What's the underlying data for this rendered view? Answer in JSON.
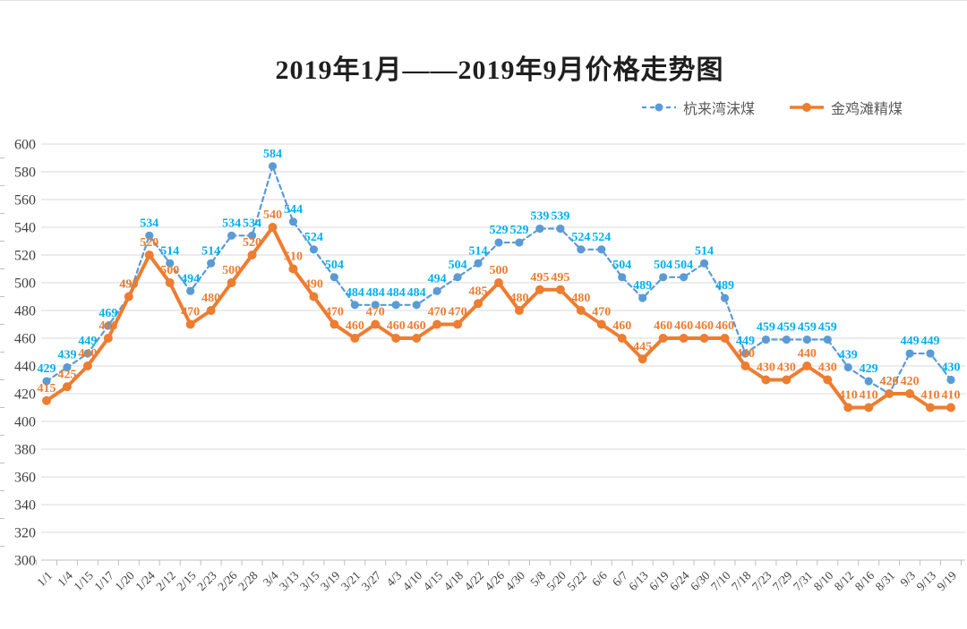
{
  "chart_data": {
    "type": "line",
    "title": "2019年1月——2019年9月价格走势图",
    "categories": [
      "1/1",
      "1/4",
      "1/15",
      "1/17",
      "1/20",
      "1/24",
      "2/12",
      "2/15",
      "2/23",
      "2/26",
      "2/28",
      "3/4",
      "3/13",
      "3/15",
      "3/19",
      "3/21",
      "3/27",
      "4/3",
      "4/10",
      "4/15",
      "4/18",
      "4/22",
      "4/26",
      "4/30",
      "5/8",
      "5/20",
      "5/22",
      "6/6",
      "6/7",
      "6/13",
      "6/19",
      "6/24",
      "6/30",
      "7/10",
      "7/18",
      "7/23",
      "7/29",
      "7/31",
      "8/10",
      "8/12",
      "8/16",
      "8/31",
      "9/3",
      "9/13",
      "9/19"
    ],
    "series": [
      {
        "name": "杭来湾沫煤",
        "color": "#5B9BD5",
        "label_color": "#00B0F0",
        "dash": true,
        "values": [
          429,
          439,
          449,
          469,
          490,
          534,
          514,
          494,
          514,
          534,
          534,
          584,
          544,
          524,
          504,
          484,
          484,
          484,
          484,
          494,
          504,
          514,
          529,
          529,
          539,
          539,
          524,
          524,
          504,
          489,
          504,
          504,
          514,
          489,
          449,
          459,
          459,
          459,
          459,
          439,
          429,
          420,
          449,
          449,
          430
        ]
      },
      {
        "name": "金鸡滩精煤",
        "color": "#ED7D31",
        "label_color": "#ED7D31",
        "dash": false,
        "values": [
          415,
          425,
          440,
          460,
          490,
          520,
          500,
          470,
          480,
          500,
          520,
          540,
          510,
          490,
          470,
          460,
          470,
          460,
          460,
          470,
          470,
          485,
          500,
          480,
          495,
          495,
          480,
          470,
          460,
          445,
          460,
          460,
          460,
          460,
          440,
          430,
          430,
          440,
          430,
          410,
          410,
          420,
          420,
          410,
          410
        ]
      }
    ],
    "ylim": [
      300,
      600
    ],
    "ytick_step": 20,
    "y_tick_labels": [
      "300",
      "320",
      "340",
      "360",
      "380",
      "400",
      "420",
      "440",
      "460",
      "480",
      "500",
      "520",
      "540",
      "560",
      "580",
      "600"
    ],
    "grid": true,
    "legend_position": "top-right"
  },
  "colors": {
    "gridline": "#D9D9D9",
    "axis": "#BFBFBF",
    "axis_text": "#404040",
    "title_text": "#1F1F1F",
    "legend_text": "#595959",
    "background": "#FFFFFF"
  }
}
